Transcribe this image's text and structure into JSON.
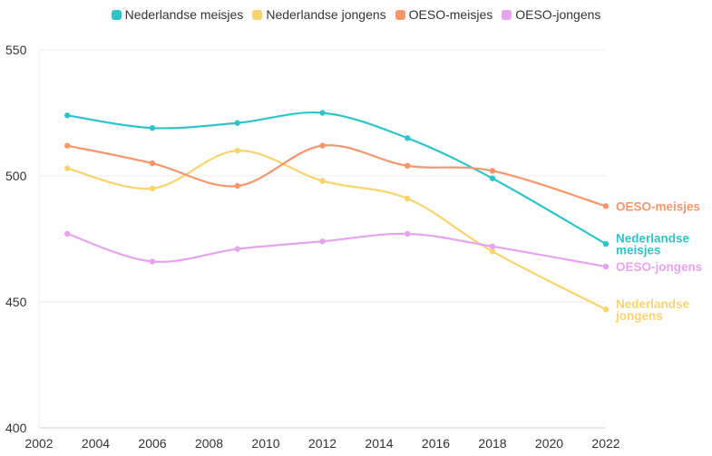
{
  "chart_data": {
    "type": "line",
    "x": [
      2003,
      2006,
      2009,
      2012,
      2015,
      2018,
      2022
    ],
    "series": [
      {
        "name": "Nederlandse meisjes",
        "color": "#2EC4C9",
        "values": [
          524,
          519,
          521,
          525,
          515,
          499,
          473
        ],
        "end_label": [
          "Nederlandse",
          "meisjes"
        ]
      },
      {
        "name": "Nederlandse jongens",
        "color": "#F9D46E",
        "values": [
          503,
          495,
          510,
          498,
          491,
          470,
          447
        ],
        "end_label": [
          "Nederlandse",
          "jongens"
        ]
      },
      {
        "name": "OESO-meisjes",
        "color": "#F7966B",
        "values": [
          512,
          505,
          496,
          512,
          504,
          502,
          488
        ],
        "end_label": [
          "OESO-meisjes"
        ]
      },
      {
        "name": "OESO-jongens",
        "color": "#E6A4EE",
        "values": [
          477,
          466,
          471,
          474,
          477,
          472,
          464
        ],
        "end_label": [
          "OESO-jongens"
        ]
      }
    ],
    "xlim": [
      2002,
      2022
    ],
    "ylim": [
      400,
      550
    ],
    "x_ticks": [
      "2002",
      "2004",
      "2006",
      "2008",
      "2010",
      "2012",
      "2014",
      "2016",
      "2018",
      "2020",
      "2022"
    ],
    "y_ticks": [
      "400",
      "450",
      "500",
      "550"
    ],
    "grid": true,
    "legend_position": "top-center"
  }
}
